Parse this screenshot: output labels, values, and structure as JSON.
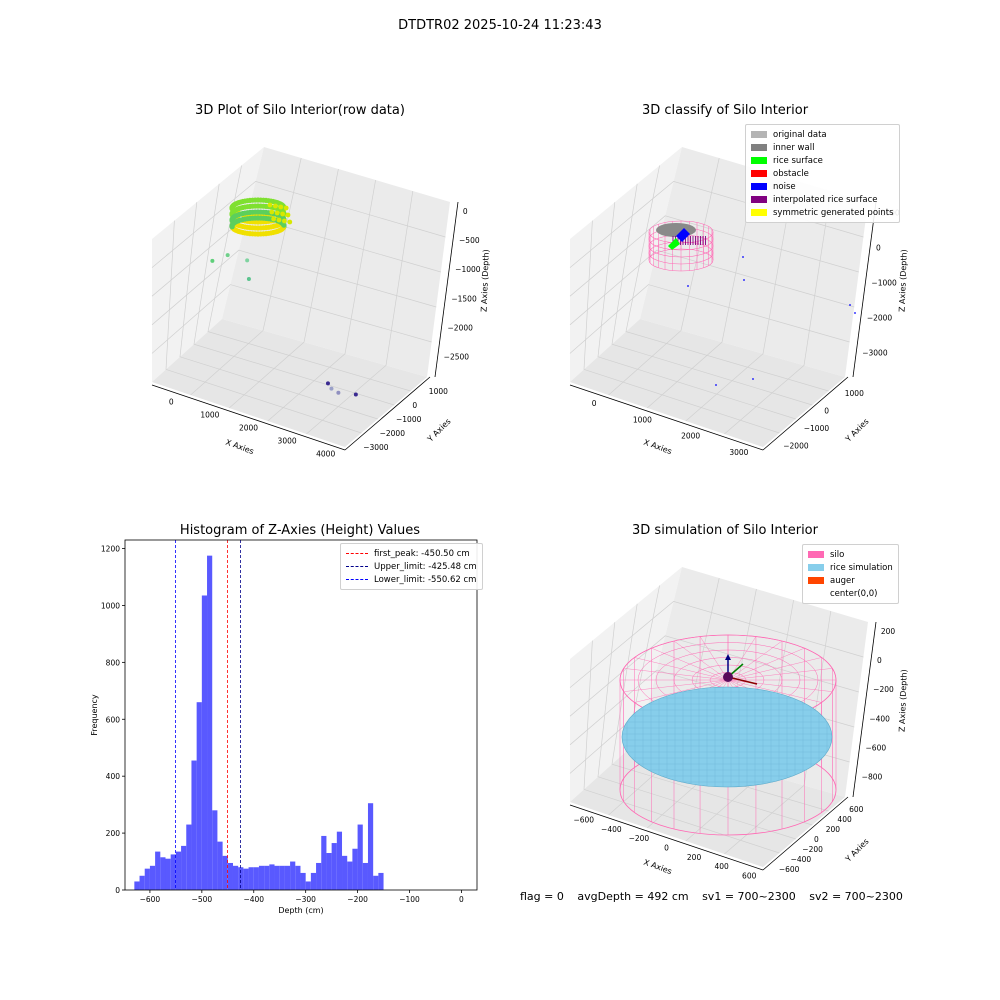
{
  "suptitle": "DTDTR02 2025-10-24 11:23:43",
  "chart_data": [
    {
      "type": "scatter",
      "title": "3D Plot of Silo Interior(row data)",
      "xlabel": "X Axies",
      "ylabel": "Y Axies",
      "zlabel": "Z Axies (Depth)",
      "x_ticks": [
        "0",
        "1000",
        "2000",
        "3000",
        "4000"
      ],
      "y_ticks": [
        "−3000",
        "−2000",
        "−1000",
        "0",
        "1000"
      ],
      "z_ticks": [
        "0",
        "−500",
        "−1000",
        "−1500",
        "−2000",
        "−2500"
      ],
      "xlim": [
        -600,
        4000
      ],
      "ylim": [
        -3200,
        1500
      ],
      "zlim": [
        -2600,
        100
      ],
      "outlier_points": [
        {
          "x": 200,
          "y": -300,
          "z": -900,
          "c": "#5fcf7a"
        },
        {
          "x": 600,
          "y": -200,
          "z": -700,
          "c": "#6fd08a"
        },
        {
          "x": 1100,
          "y": -100,
          "z": -650,
          "c": "#7fd3a0"
        },
        {
          "x": 1000,
          "y": -500,
          "z": -1050,
          "c": "#5bc48e"
        },
        {
          "x": 3500,
          "y": 1000,
          "z": -1900,
          "c": "#9aa0c8"
        },
        {
          "x": 3700,
          "y": 1100,
          "z": -1900,
          "c": "#9090c0"
        },
        {
          "x": 2600,
          "y": -1300,
          "z": -2500,
          "c": "#3a2a90"
        },
        {
          "x": 3300,
          "y": -1200,
          "z": -2500,
          "c": "#3a2a90"
        }
      ]
    },
    {
      "type": "scatter",
      "title": "3D classify of Silo Interior",
      "xlabel": "X Axies",
      "ylabel": "Y Axies",
      "zlabel": "Z Axies (Depth)",
      "x_ticks": [
        "0",
        "1000",
        "2000",
        "3000"
      ],
      "y_ticks": [
        "−2000",
        "−1000",
        "0",
        "1000"
      ],
      "z_ticks": [
        "1000",
        "0",
        "−1000",
        "−2000",
        "−3000"
      ],
      "legend": [
        {
          "label": "original data",
          "color": "#b4b4b4"
        },
        {
          "label": "inner wall",
          "color": "#808080"
        },
        {
          "label": "rice surface",
          "color": "#00ff00"
        },
        {
          "label": "obstacle",
          "color": "#ff0000"
        },
        {
          "label": "noise",
          "color": "#0000ff"
        },
        {
          "label": "interpolated rice surface",
          "color": "#800080"
        },
        {
          "label": "symmetric generated points",
          "color": "#ffff00"
        }
      ]
    },
    {
      "type": "bar",
      "title": "Histogram of Z-Axies (Height) Values",
      "xlabel": "Depth (cm)",
      "ylabel": "Frequency",
      "xlim": [
        -648,
        30
      ],
      "ylim": [
        0,
        1230
      ],
      "x_ticks": [
        "−600",
        "−500",
        "−400",
        "−300",
        "−200",
        "−100",
        "0"
      ],
      "x_tick_values": [
        -600,
        -500,
        -400,
        -300,
        -200,
        -100,
        0
      ],
      "y_ticks": [
        "0",
        "200",
        "400",
        "600",
        "800",
        "1000",
        "1200"
      ],
      "y_tick_values": [
        0,
        200,
        400,
        600,
        800,
        1000,
        1200
      ],
      "bin_start": -630,
      "bin_width": 10,
      "color": "#5050ff",
      "values": [
        30,
        50,
        75,
        85,
        135,
        115,
        110,
        125,
        135,
        155,
        230,
        455,
        660,
        1035,
        1175,
        280,
        170,
        120,
        95,
        85,
        80,
        75,
        80,
        80,
        85,
        85,
        90,
        85,
        85,
        85,
        100,
        85,
        60,
        30,
        60,
        95,
        190,
        130,
        165,
        205,
        120,
        100,
        145,
        230,
        95,
        305,
        50,
        60
      ],
      "vlines": [
        {
          "label": "first_peak: -450.50 cm",
          "x": -450.5,
          "color": "#ff0000",
          "style": "dashed"
        },
        {
          "label": "Upper_limit: -425.48 cm",
          "x": -425.48,
          "color": "#00008b",
          "style": "dashed"
        },
        {
          "label": "Lower_limit: -550.62 cm",
          "x": -550.62,
          "color": "#0000ff",
          "style": "dashed"
        }
      ]
    },
    {
      "type": "scatter",
      "title": "3D simulation of Silo Interior",
      "xlabel": "X Axies",
      "ylabel": "Y Axies",
      "zlabel": "Z Axies (Depth)",
      "x_ticks": [
        "−600",
        "−400",
        "−200",
        "0",
        "200",
        "400",
        "600"
      ],
      "y_ticks": [
        "−600",
        "−400",
        "−200",
        "0",
        "200",
        "400",
        "600"
      ],
      "z_ticks": [
        "200",
        "0",
        "−200",
        "−400",
        "−600",
        "−800"
      ],
      "legend": [
        {
          "label": "silo",
          "color": "#ff69b4"
        },
        {
          "label": "rice simulation",
          "color": "#87ceeb"
        },
        {
          "label": "auger",
          "color": "#ff4500"
        },
        {
          "label": "center(0,0)",
          "color": ""
        }
      ]
    }
  ],
  "footer": {
    "flag": "flag = 0",
    "avg": "avgDepth = 492 cm",
    "sv1": "sv1 = 700~2300",
    "sv2": "sv2 = 700~2300"
  }
}
